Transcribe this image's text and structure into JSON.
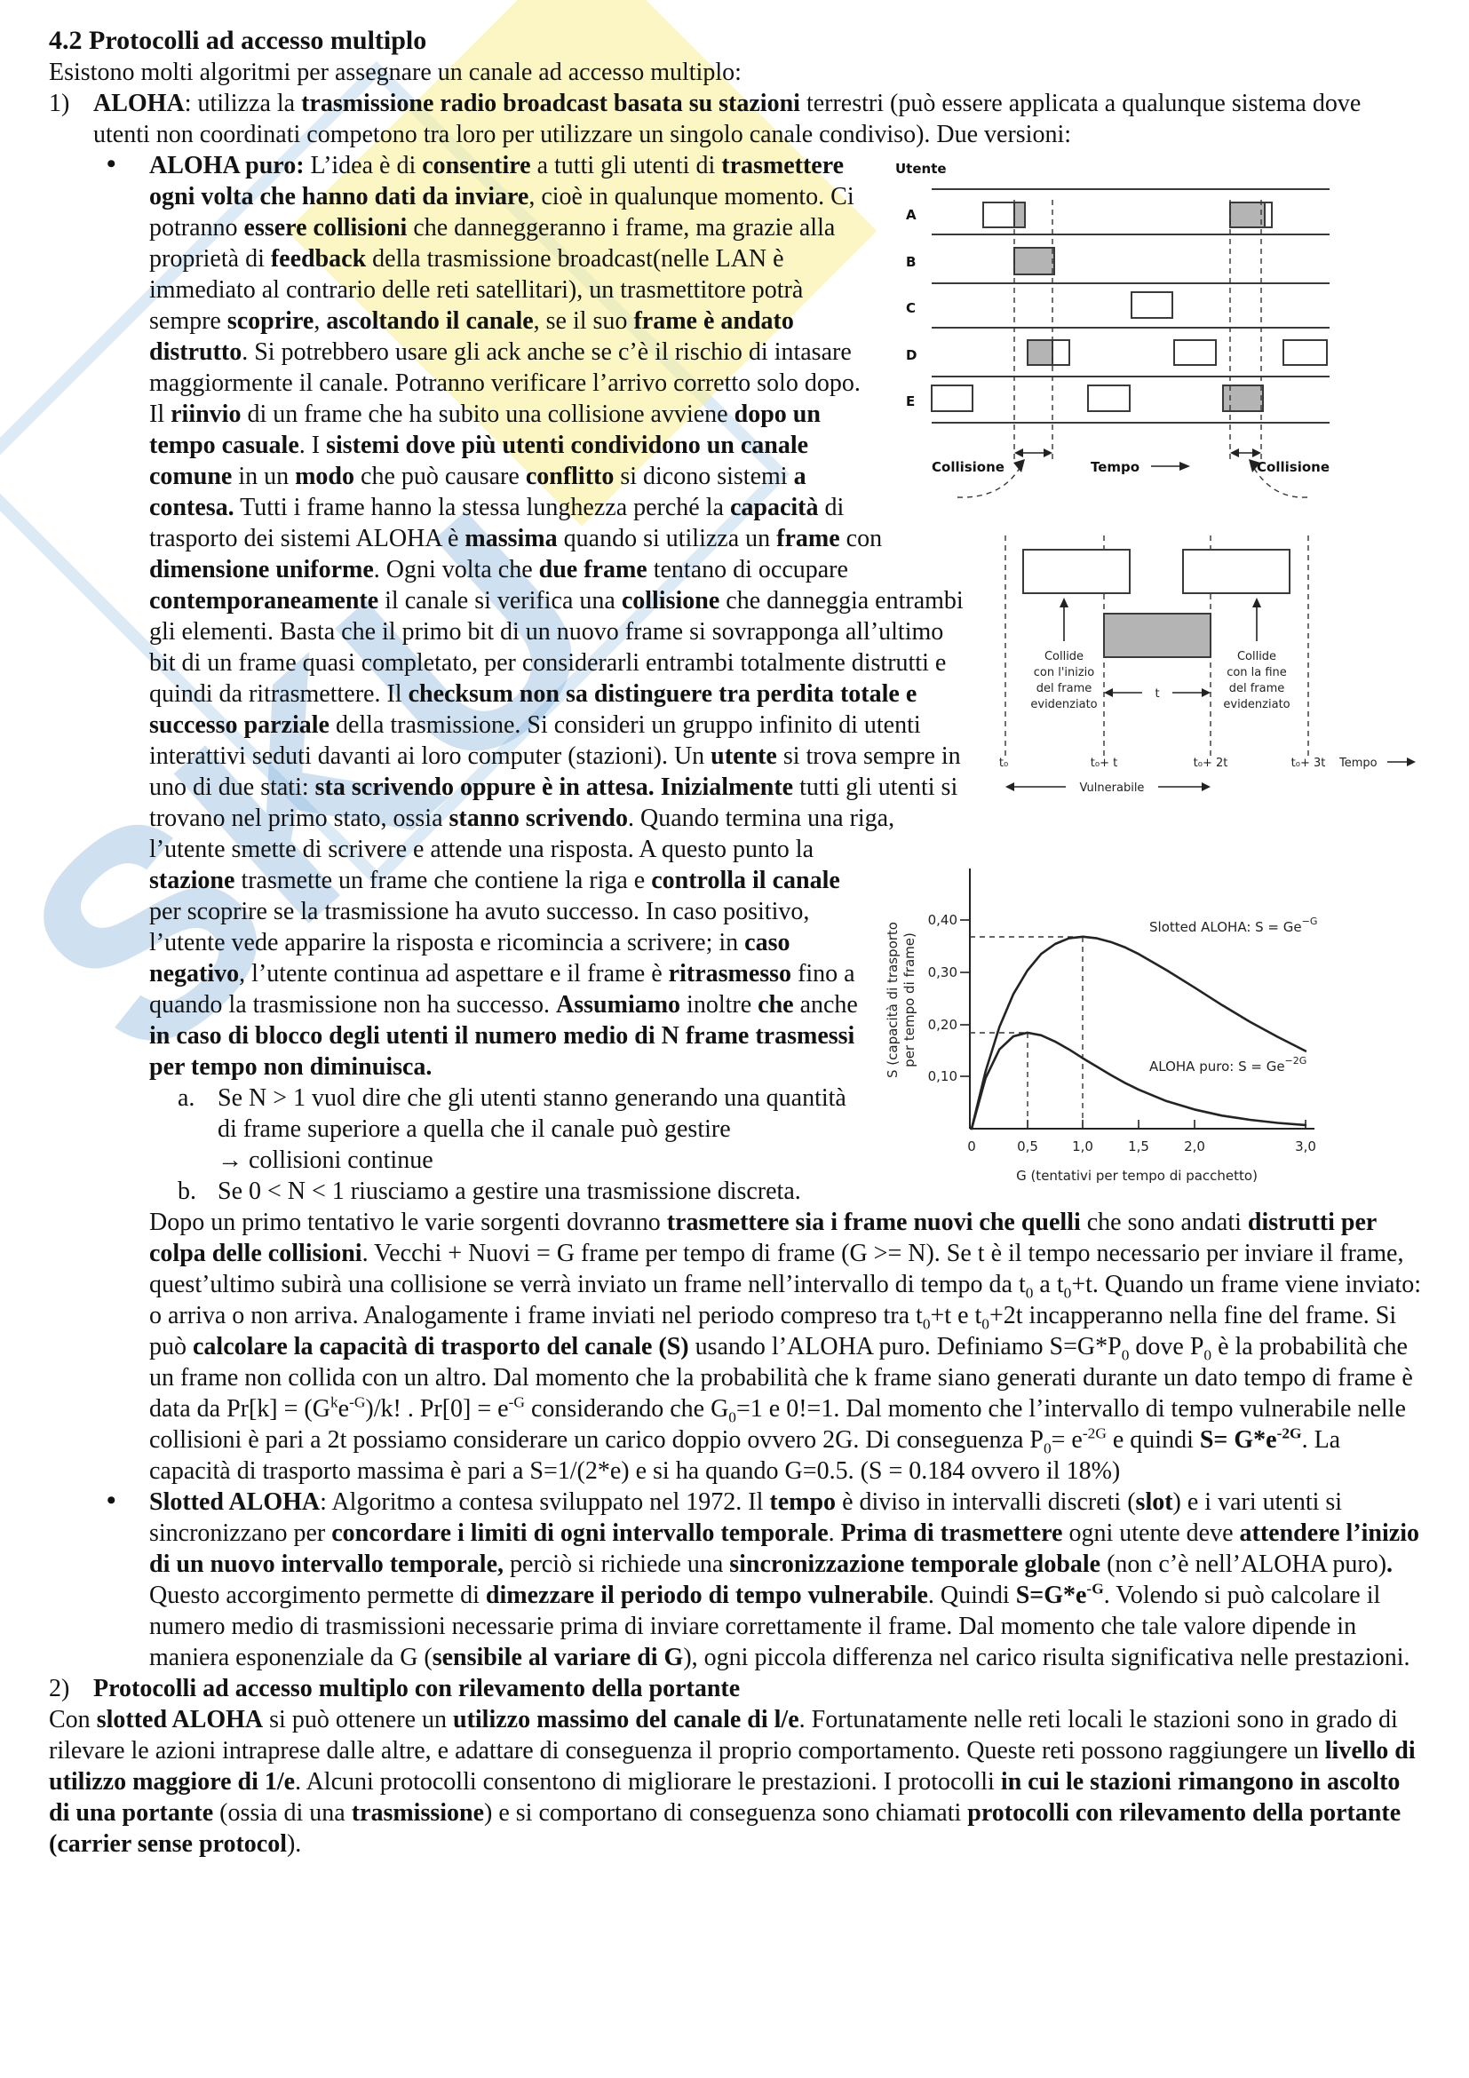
{
  "colors": {
    "text": "#121212",
    "page_background": "#ffffff",
    "figure_gray_fill": "#b4b4b4",
    "watermark_blue": "#5f98ce",
    "watermark_yellow": "#f9ee94"
  },
  "watermark": {
    "text": "SKU"
  },
  "doc": {
    "heading": [
      {
        "t": "4.2  Protocolli ad accesso multiplo",
        "f": "b"
      }
    ],
    "intro": [
      {
        "t": "Esistono molti algoritmi per assegnare un canale ad accesso multiplo:"
      }
    ],
    "item1_label": "1)",
    "item1": [
      {
        "t": "ALOHA",
        "f": "b"
      },
      {
        "t": ": utilizza la "
      },
      {
        "t": "trasmissione radio broadcast basata su stazioni",
        "f": "b"
      },
      {
        "t": " terrestri (può essere applicata a qualunque sistema dove utenti non coordinati competono tra loro per utilizzare un singolo canale condiviso). Due versioni:"
      }
    ],
    "bullet_char": "•",
    "aloha_puro": [
      {
        "t": "ALOHA puro: ",
        "f": "b"
      },
      {
        "t": "L’idea è di "
      },
      {
        "t": "consentire",
        "f": "b"
      },
      {
        "t": " a tutti gli utenti di "
      },
      {
        "t": "trasmettere ogni volta che hanno dati da inviare",
        "f": "b"
      },
      {
        "t": ", cioè in qualunque momento. Ci potranno "
      },
      {
        "t": "essere collisioni",
        "f": "b"
      },
      {
        "t": " che danneggeranno i frame, ma grazie alla proprietà di "
      },
      {
        "t": "feedback",
        "f": "b"
      },
      {
        "t": " della trasmissione broadcast(nelle LAN è immediato al contrario delle reti satellitari), un trasmettitore potrà sempre "
      },
      {
        "t": "scoprire",
        "f": "b"
      },
      {
        "t": ", "
      },
      {
        "t": "ascoltando il canale",
        "f": "b"
      },
      {
        "t": ", se il suo "
      },
      {
        "t": "frame è andato distrutto",
        "f": "b"
      },
      {
        "t": ". Si potrebbero usare gli ack anche se c’è il rischio di intasare maggiormente il canale. Potranno verificare l’arrivo corretto solo dopo. Il "
      },
      {
        "t": "riinvio",
        "f": "b"
      },
      {
        "t": " di un frame che ha subito una collisione avviene "
      },
      {
        "t": "dopo un tempo casuale",
        "f": "b"
      },
      {
        "t": ". I "
      },
      {
        "t": "sistemi dove più utenti condividono un canale comune",
        "f": "b"
      },
      {
        "t": " in un "
      },
      {
        "t": "modo",
        "f": "b"
      },
      {
        "t": " che può causare "
      },
      {
        "t": "conflitto",
        "f": "b"
      },
      {
        "t": " si dicono sistemi "
      },
      {
        "t": "a contesa.",
        "f": "b"
      },
      {
        "t": " Tutti i frame hanno la stessa lunghezza perché la "
      },
      {
        "t": "capacità",
        "f": "b"
      },
      {
        "t": " di trasporto dei sistemi ALOHA è "
      },
      {
        "t": "massima",
        "f": "b"
      },
      {
        "t": " quando si utilizza un "
      },
      {
        "t": "frame",
        "f": "b"
      },
      {
        "t": " con "
      },
      {
        "t": "dimensione uniforme",
        "f": "b"
      },
      {
        "t": ". Ogni volta che "
      },
      {
        "t": "due frame",
        "f": "b"
      },
      {
        "t": " tentano di occupare "
      },
      {
        "t": "contemporaneamente",
        "f": "b"
      },
      {
        "t": " il canale si verifica una "
      },
      {
        "t": "collisione",
        "f": "b"
      },
      {
        "t": " che danneggia entrambi gli elementi. Basta che il primo bit di un nuovo frame si sovrapponga all’ultimo bit di un frame quasi completato, per considerarli entrambi totalmente distrutti e quindi da ritrasmettere. Il "
      },
      {
        "t": "checksum non sa distinguere tra perdita totale e successo parziale",
        "f": "b"
      },
      {
        "t": " della trasmissione. Si consideri un gruppo infinito di utenti interattivi seduti davanti ai loro computer (stazioni). Un "
      },
      {
        "t": "utente",
        "f": "b"
      },
      {
        "t": " si trova sempre in uno di due stati: "
      },
      {
        "t": "sta scrivendo oppure è in attesa. Inizialmente",
        "f": "b"
      },
      {
        "t": " tutti gli utenti si trovano nel primo stato, ossia "
      },
      {
        "t": "stanno scrivendo",
        "f": "b"
      },
      {
        "t": ". Quando termina una riga, l’utente smette di scrivere e attende una risposta. A questo punto la "
      },
      {
        "t": "stazione",
        "f": "b"
      },
      {
        "t": " trasmette un frame che contiene la riga e "
      },
      {
        "t": "controlla il canale",
        "f": "b"
      },
      {
        "t": " per scoprire se la trasmissione ha avuto successo. In caso positivo, l’utente vede apparire la risposta e ricomincia a scrivere; in "
      },
      {
        "t": "caso negativo",
        "f": "b"
      },
      {
        "t": ", l’utente continua ad aspettare e il frame è "
      },
      {
        "t": "ritrasmesso",
        "f": "b"
      },
      {
        "t": " fino a quando la trasmissione non ha successo. "
      },
      {
        "t": "Assumiamo",
        "f": "b"
      },
      {
        "t": " inoltre "
      },
      {
        "t": "che",
        "f": "b"
      },
      {
        "t": " anche "
      },
      {
        "t": "in caso di blocco degli utenti il numero medio di N frame trasmessi per tempo non diminuisca.",
        "f": "b"
      }
    ],
    "sub_a_label": "a.",
    "sub_a": [
      {
        "t": "Se N > 1 vuol dire che gli utenti stanno generando una quantità di frame superiore a quella che il canale può gestire"
      },
      {
        "f": "br"
      },
      {
        "t": "→ collisioni continue"
      }
    ],
    "sub_b_label": "b.",
    "sub_b": [
      {
        "t": "Se 0 < N < 1 riusciamo a gestire una trasmissione discreta."
      }
    ],
    "dopo": [
      {
        "t": "Dopo un primo tentativo le varie sorgenti dovranno "
      },
      {
        "t": "trasmettere sia i frame nuovi che quelli",
        "f": "b"
      },
      {
        "t": " che sono andati "
      },
      {
        "t": "distrutti per colpa delle collisioni",
        "f": "b"
      },
      {
        "t": ". Vecchi + Nuovi = G frame per tempo di frame (G >= N). Se t è il tempo necessario per inviare il frame, quest’ultimo subirà una collisione se verrà inviato un frame nell’intervallo di tempo da t"
      },
      {
        "t": "0",
        "f": "sub"
      },
      {
        "t": " a t"
      },
      {
        "t": "0",
        "f": "sub"
      },
      {
        "t": "+t. Quando un frame viene inviato: o arriva o non arriva. Analogamente i frame inviati nel periodo compreso tra t"
      },
      {
        "t": "0",
        "f": "sub"
      },
      {
        "t": "+t e t"
      },
      {
        "t": "0",
        "f": "sub"
      },
      {
        "t": "+2t incapperanno nella fine del frame. Si può "
      },
      {
        "t": "calcolare la capacità di trasporto del canale (S)",
        "f": "b"
      },
      {
        "t": " usando l’ALOHA puro. Definiamo S=G*P"
      },
      {
        "t": "0",
        "f": "sub"
      },
      {
        "t": " dove P"
      },
      {
        "t": "0",
        "f": "sub"
      },
      {
        "t": " è la probabilità che un frame non collida con un altro. Dal momento che la probabilità che k frame siano generati durante un dato tempo di frame è data da Pr[k] = (G"
      },
      {
        "t": "k",
        "f": "sup"
      },
      {
        "t": "e"
      },
      {
        "t": "-G",
        "f": "sup"
      },
      {
        "t": ")/k! . Pr[0] = e"
      },
      {
        "t": "-G",
        "f": "sup"
      },
      {
        "t": " considerando che G"
      },
      {
        "t": "0",
        "f": "sub"
      },
      {
        "t": "=1 e 0!=1. Dal momento che l’intervallo di tempo vulnerabile nelle collisioni è pari a 2t possiamo considerare un carico doppio ovvero 2G. Di conseguenza P"
      },
      {
        "t": "0",
        "f": "sub"
      },
      {
        "t": "= e"
      },
      {
        "t": "-2G",
        "f": "sup"
      },
      {
        "t": " e quindi "
      },
      {
        "t": "S= G*e",
        "f": "b"
      },
      {
        "t": "-2G",
        "f": "bsup"
      },
      {
        "t": ". La capacità di trasporto massima è pari a S=1/(2*e) e si ha quando G=0.5. (S = 0.184 ovvero il 18%)"
      }
    ],
    "slotted": [
      {
        "t": "Slotted ALOHA",
        "f": "b"
      },
      {
        "t": ": Algoritmo a contesa sviluppato nel 1972. Il "
      },
      {
        "t": "tempo",
        "f": "b"
      },
      {
        "t": " è diviso in intervalli discreti ("
      },
      {
        "t": "slot",
        "f": "b"
      },
      {
        "t": ") e i vari utenti si sincronizzano per "
      },
      {
        "t": "concordare i limiti di ogni intervallo temporale",
        "f": "b"
      },
      {
        "t": ". "
      },
      {
        "t": "Prima di trasmettere",
        "f": "b"
      },
      {
        "t": " ogni utente deve "
      },
      {
        "t": "attendere l’inizio di un nuovo intervallo temporale,",
        "f": "b"
      },
      {
        "t": " perciò si richiede una "
      },
      {
        "t": "sincronizzazione temporale globale",
        "f": "b"
      },
      {
        "t": " (non c’è nell’ALOHA puro)"
      },
      {
        "t": ".",
        "f": "b"
      },
      {
        "t": " Questo accorgimento permette di "
      },
      {
        "t": "dimezzare il periodo di tempo vulnerabile",
        "f": "b"
      },
      {
        "t": ". Quindi "
      },
      {
        "t": "S=G*e",
        "f": "b"
      },
      {
        "t": "-G",
        "f": "bsup"
      },
      {
        "t": ". Volendo si può calcolare il numero medio di trasmissioni necessarie prima di inviare correttamente il frame. Dal momento che tale valore dipende in maniera esponenziale da G ("
      },
      {
        "t": "sensibile al variare di G",
        "f": "b"
      },
      {
        "t": "), ogni piccola differenza nel carico risulta significativa nelle prestazioni."
      }
    ],
    "item2_label": "2)",
    "item2": [
      {
        "t": "Protocolli ad accesso multiplo con rilevamento della portante",
        "f": "b"
      }
    ],
    "carrier": [
      {
        "t": "Con "
      },
      {
        "t": "slotted ALOHA",
        "f": "b"
      },
      {
        "t": " si può ottenere un "
      },
      {
        "t": "utilizzo massimo del canale di l/e",
        "f": "b"
      },
      {
        "t": ". Fortunatamente nelle reti locali le stazioni sono in grado di rilevare le azioni intraprese dalle altre, e adattare di conseguenza il proprio comportamento. Queste reti possono raggiungere un "
      },
      {
        "t": "livello di utilizzo maggiore di 1/e",
        "f": "b"
      },
      {
        "t": ". Alcuni protocolli consentono di migliorare le prestazioni. I protocolli "
      },
      {
        "t": "in cui le stazioni rimangono in ascolto di una portante",
        "f": "b"
      },
      {
        "t": " (ossia di una "
      },
      {
        "t": "trasmissione",
        "f": "b"
      },
      {
        "t": ") e si comportano di conseguenza sono chiamati "
      },
      {
        "t": "protocolli con rilevamento della portante (carrier sense protocol",
        "f": "b"
      },
      {
        "t": ")."
      }
    ]
  },
  "fig1": {
    "title": "Utente",
    "rows": [
      "A",
      "B",
      "C",
      "D",
      "E"
    ],
    "collision_left": "Collisione",
    "tempo": "Tempo",
    "collision_right": "Collisione"
  },
  "fig2": {
    "left_caption": [
      "Collide",
      "con l'inizio",
      "del frame",
      "evidenziato"
    ],
    "right_caption": [
      "Collide",
      "con la fine",
      "del frame",
      "evidenziato"
    ],
    "t_label": "t",
    "axis_labels": [
      "t₀",
      "t₀+ t",
      "t₀+ 2t",
      "t₀+ 3t"
    ],
    "tempo": "Tempo",
    "vulnerable": "Vulnerabile"
  },
  "chart_data": {
    "type": "line",
    "title": "",
    "xlabel": "G (tentativi per tempo di pacchetto)",
    "ylabel": "S (capacità di trasporto per tempo di frame)",
    "ylabel_lines": [
      "S (capacità di trasporto",
      "per tempo di frame)"
    ],
    "xlim": [
      0,
      3.0
    ],
    "ylim": [
      0,
      0.45
    ],
    "grid": false,
    "legend_position": "inline-right",
    "xtick_values": [
      0,
      0.5,
      1.0,
      1.5,
      2.0,
      3.0
    ],
    "xtick_labels": [
      "0",
      "0,5",
      "1,0",
      "1,5",
      "2,0",
      "3,0"
    ],
    "ytick_values": [
      0.1,
      0.2,
      0.3,
      0.4
    ],
    "ytick_labels": [
      "0,10",
      "0,20",
      "0,30",
      "0,40"
    ],
    "legend": [
      {
        "base": "Slotted ALOHA: S = Ge",
        "sup": "−G"
      },
      {
        "base": "ALOHA puro: S = Ge",
        "sup": "−2G"
      }
    ],
    "x": [
      0,
      0.125,
      0.25,
      0.375,
      0.5,
      0.625,
      0.75,
      0.875,
      1.0,
      1.125,
      1.25,
      1.375,
      1.5,
      1.75,
      2.0,
      2.25,
      2.5,
      2.75,
      3.0
    ],
    "series": [
      {
        "name": "Slotted ALOHA",
        "formula": "S = G·e^−G",
        "peak": {
          "G": 1.0,
          "S": 0.368
        },
        "y": [
          0,
          0.11,
          0.195,
          0.258,
          0.303,
          0.335,
          0.354,
          0.365,
          0.368,
          0.365,
          0.358,
          0.348,
          0.335,
          0.304,
          0.271,
          0.237,
          0.205,
          0.176,
          0.149
        ]
      },
      {
        "name": "ALOHA puro",
        "formula": "S = G·e^−2G",
        "peak": {
          "G": 0.5,
          "S": 0.184
        },
        "y": [
          0,
          0.097,
          0.152,
          0.177,
          0.184,
          0.179,
          0.167,
          0.152,
          0.135,
          0.119,
          0.103,
          0.088,
          0.075,
          0.053,
          0.037,
          0.025,
          0.017,
          0.011,
          0.007
        ]
      }
    ]
  }
}
